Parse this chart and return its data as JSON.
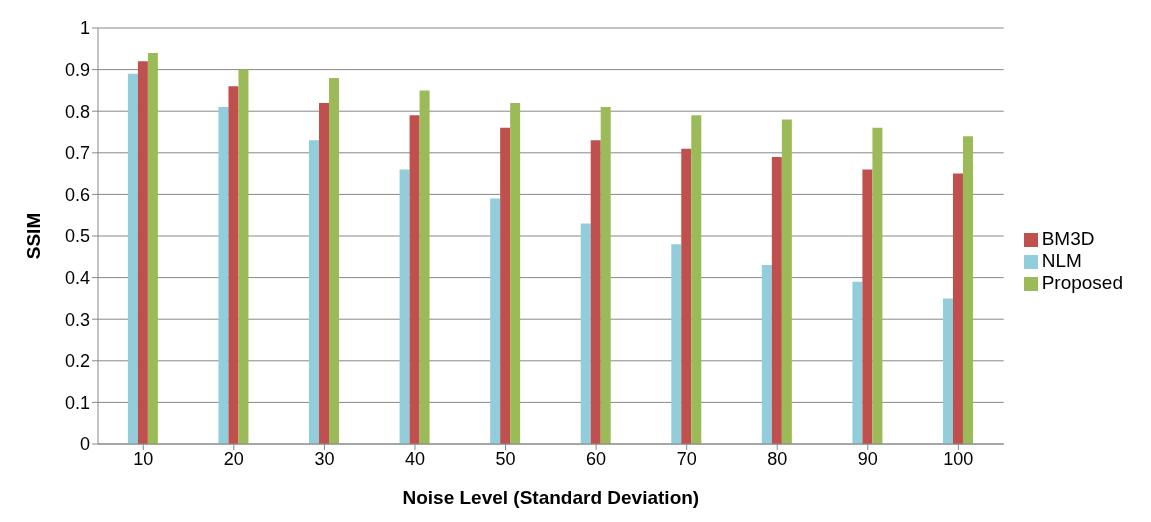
{
  "chart_data": {
    "type": "bar",
    "xlabel": "Noise Level (Standard Deviation)",
    "ylabel": "SSIM",
    "categories": [
      "10",
      "20",
      "30",
      "40",
      "50",
      "60",
      "70",
      "80",
      "90",
      "100"
    ],
    "series": [
      {
        "name": "NLM",
        "color": "#92cddc",
        "values": [
          0.89,
          0.81,
          0.73,
          0.66,
          0.59,
          0.53,
          0.48,
          0.43,
          0.39,
          0.35
        ]
      },
      {
        "name": "BM3D",
        "color": "#c0504d",
        "values": [
          0.92,
          0.86,
          0.82,
          0.79,
          0.76,
          0.73,
          0.71,
          0.69,
          0.66,
          0.65
        ]
      },
      {
        "name": "Proposed",
        "color": "#9bbb59",
        "values": [
          0.94,
          0.9,
          0.88,
          0.85,
          0.82,
          0.81,
          0.79,
          0.78,
          0.76,
          0.74
        ]
      }
    ],
    "ylim": [
      0,
      1
    ],
    "yticks": [
      0,
      0.1,
      0.2,
      0.3,
      0.4,
      0.5,
      0.6,
      0.7,
      0.8,
      0.9,
      1
    ],
    "grid": "y",
    "legend": "right"
  }
}
